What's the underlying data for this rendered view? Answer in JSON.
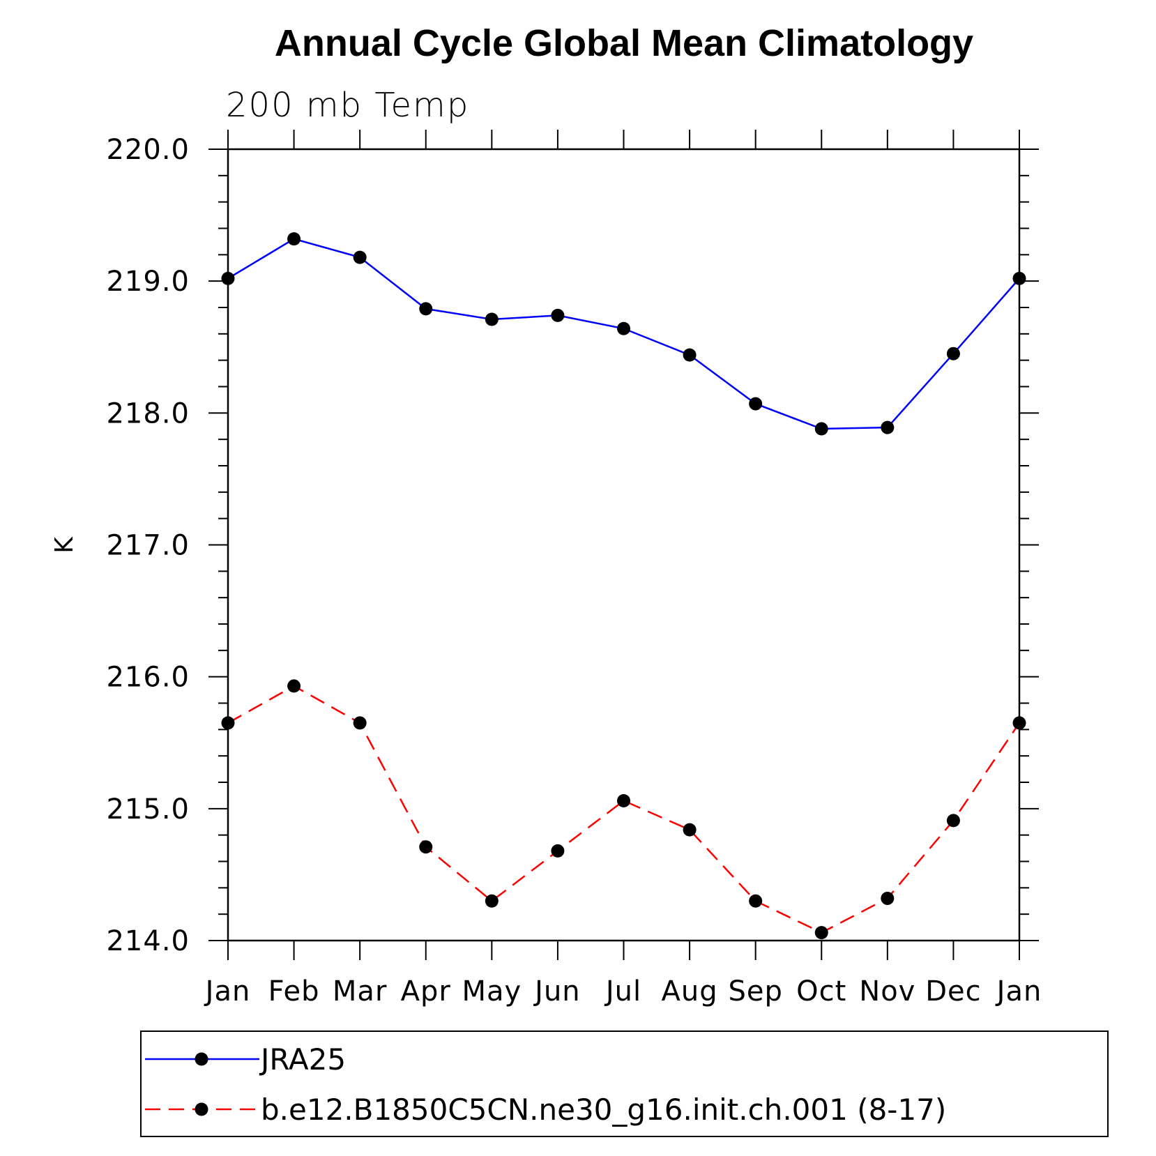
{
  "chart_data": {
    "type": "line",
    "title": "Annual Cycle Global Mean Climatology",
    "subtitle": "200 mb Temp",
    "xlabel": "",
    "ylabel": "K",
    "categories": [
      "Jan",
      "Feb",
      "Mar",
      "Apr",
      "May",
      "Jun",
      "Jul",
      "Aug",
      "Sep",
      "Oct",
      "Nov",
      "Dec",
      "Jan"
    ],
    "ylim": [
      214.0,
      220.0
    ],
    "yticks": [
      "214.0",
      "215.0",
      "216.0",
      "217.0",
      "218.0",
      "219.0",
      "220.0"
    ],
    "grid": false,
    "legend_position": "bottom",
    "series": [
      {
        "name": "JRA25",
        "color": "#0000ff",
        "line_style": "solid",
        "marker": "filled-circle",
        "values": [
          219.02,
          219.32,
          219.18,
          218.79,
          218.71,
          218.74,
          218.64,
          218.44,
          218.07,
          217.88,
          217.89,
          218.45,
          219.02
        ]
      },
      {
        "name": "b.e12.B1850C5CN.ne30_g16.init.ch.001 (8-17)",
        "color": "#ff0000",
        "line_style": "dashed",
        "marker": "filled-circle",
        "values": [
          215.65,
          215.93,
          215.65,
          214.71,
          214.3,
          214.68,
          215.06,
          214.84,
          214.3,
          214.06,
          214.32,
          214.91,
          215.65
        ]
      }
    ]
  }
}
